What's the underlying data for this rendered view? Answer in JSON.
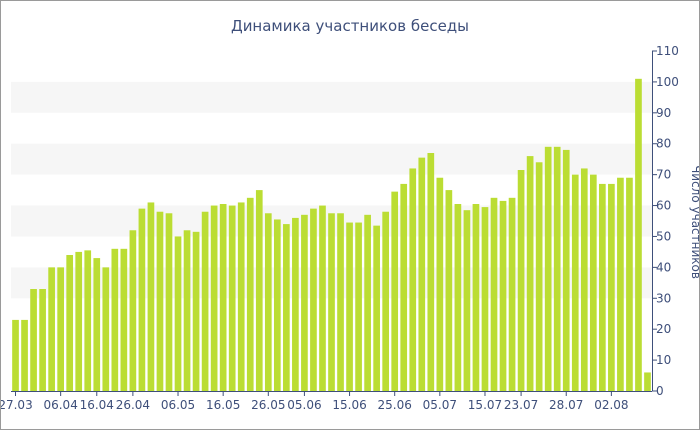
{
  "chart_data": {
    "type": "bar",
    "title": "Динамика участников беседы",
    "xlabel": "",
    "ylabel": "Число участников",
    "ylim": [
      0,
      110
    ],
    "yticks": [
      0,
      10,
      20,
      30,
      40,
      50,
      60,
      70,
      80,
      90,
      100,
      110
    ],
    "x_tick_labels": [
      "27.03",
      "06.04",
      "16.04",
      "26.04",
      "06.05",
      "16.05",
      "26.05",
      "05.06",
      "15.06",
      "25.06",
      "05.07",
      "15.07",
      "23.07",
      "28.07",
      "02.08"
    ],
    "x_tick_indices": [
      0,
      5,
      9,
      13,
      18,
      23,
      28,
      32,
      37,
      42,
      47,
      52,
      56,
      61,
      66
    ],
    "values": [
      23,
      23,
      33,
      33,
      40,
      40,
      44,
      45,
      45.5,
      43,
      40,
      46,
      46,
      52,
      59,
      61,
      58,
      57.5,
      50,
      52,
      51.5,
      58,
      60,
      60.5,
      60,
      61,
      62.5,
      65,
      57.5,
      55.5,
      54,
      56,
      57,
      59,
      60,
      57.5,
      57.5,
      54.5,
      54.5,
      57,
      53.5,
      58,
      64.5,
      67,
      72,
      75.5,
      77,
      69,
      65,
      60.5,
      58.5,
      60.5,
      59.5,
      62.5,
      61.5,
      62.5,
      71.5,
      76,
      74,
      79,
      79,
      78,
      70,
      72,
      70,
      67,
      67,
      69,
      69,
      101,
      6
    ],
    "color": "#bbdd33",
    "band_color": "#f6f6f6",
    "axis_color": "#3e4f7a",
    "grid": false,
    "legend": "none"
  }
}
